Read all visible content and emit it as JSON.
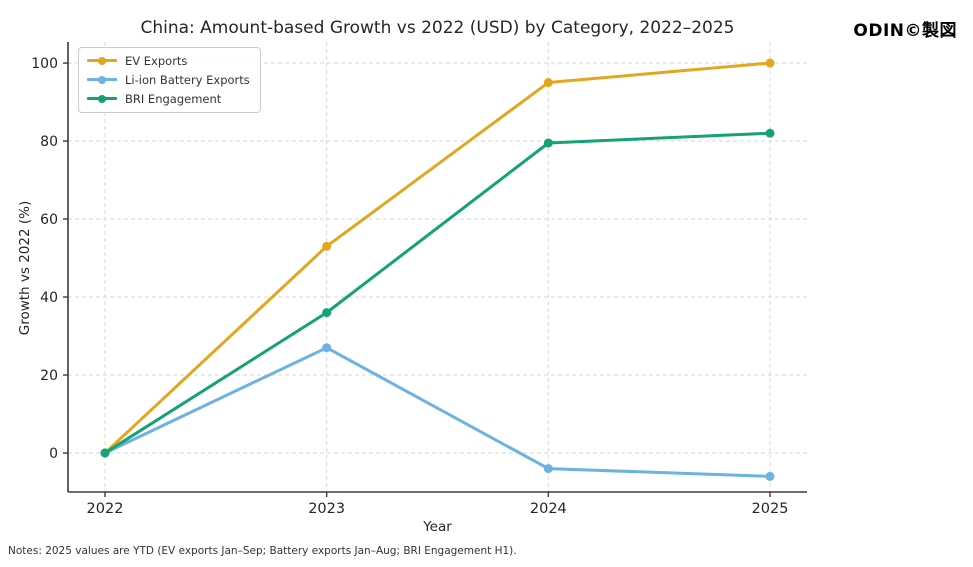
{
  "chart_data": {
    "type": "line",
    "title": "China: Amount-based Growth vs 2022 (USD) by Category, 2022–2025",
    "watermark": "ODIN©製図",
    "xlabel": "Year",
    "ylabel": "Growth vs 2022 (%)",
    "categories": [
      "2022",
      "2023",
      "2024",
      "2025"
    ],
    "yticks": [
      0,
      20,
      40,
      60,
      80,
      100
    ],
    "ylim": [
      -10,
      105.4
    ],
    "grid": true,
    "legend_position": "upper-left",
    "series": [
      {
        "name": "EV Exports",
        "color": "#E2A71E",
        "values": [
          0,
          53,
          95,
          100
        ]
      },
      {
        "name": "Li-ion Battery Exports",
        "color": "#6CB2E2",
        "values": [
          0,
          27,
          -4,
          -6
        ]
      },
      {
        "name": "BRI Engagement",
        "color": "#14A276",
        "values": [
          0,
          36,
          79.5,
          82
        ]
      }
    ],
    "note": "Notes: 2025 values are YTD (EV exports Jan–Sep; Battery exports Jan–Aug; BRI Engagement H1).",
    "colors": {
      "axis": "#3b3b3b",
      "grid": "#d7d7d7",
      "tick_label": "#262626"
    }
  }
}
